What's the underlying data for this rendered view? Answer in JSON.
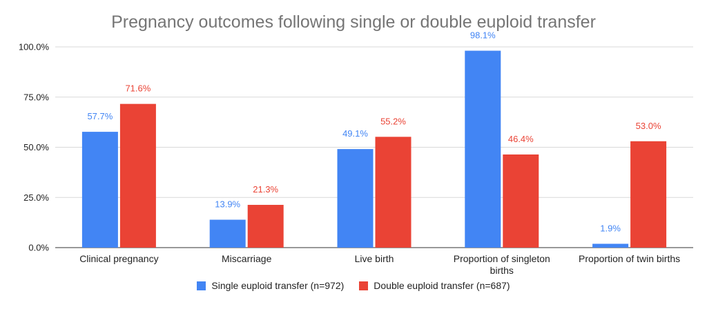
{
  "chart_data": {
    "type": "bar",
    "title": "Pregnancy outcomes following single or double euploid transfer",
    "xlabel": "",
    "ylabel": "",
    "categories": [
      [
        "Clinical pregnancy"
      ],
      [
        "Miscarriage"
      ],
      [
        "Live birth"
      ],
      [
        "Proportion of singleton",
        "births"
      ],
      [
        "Proportion of twin births"
      ]
    ],
    "series": [
      {
        "name": "Single euploid transfer (n=972)",
        "color": "#4285F4",
        "values": [
          57.7,
          13.9,
          49.1,
          98.1,
          1.9
        ],
        "labels": [
          "57.7%",
          "13.9%",
          "49.1%",
          "98.1%",
          "1.9%"
        ]
      },
      {
        "name": "Double euploid transfer (n=687)",
        "color": "#EA4335",
        "values": [
          71.6,
          21.3,
          55.2,
          46.4,
          53.0
        ],
        "labels": [
          "71.6%",
          "21.3%",
          "55.2%",
          "46.4%",
          "53.0%"
        ]
      }
    ],
    "ylim": [
      0,
      100
    ],
    "yticks": [
      0,
      25,
      50,
      75,
      100
    ],
    "ytick_labels": [
      "0.0%",
      "25.0%",
      "50.0%",
      "75.0%",
      "100.0%"
    ],
    "grid": true,
    "legend_position": "bottom"
  }
}
